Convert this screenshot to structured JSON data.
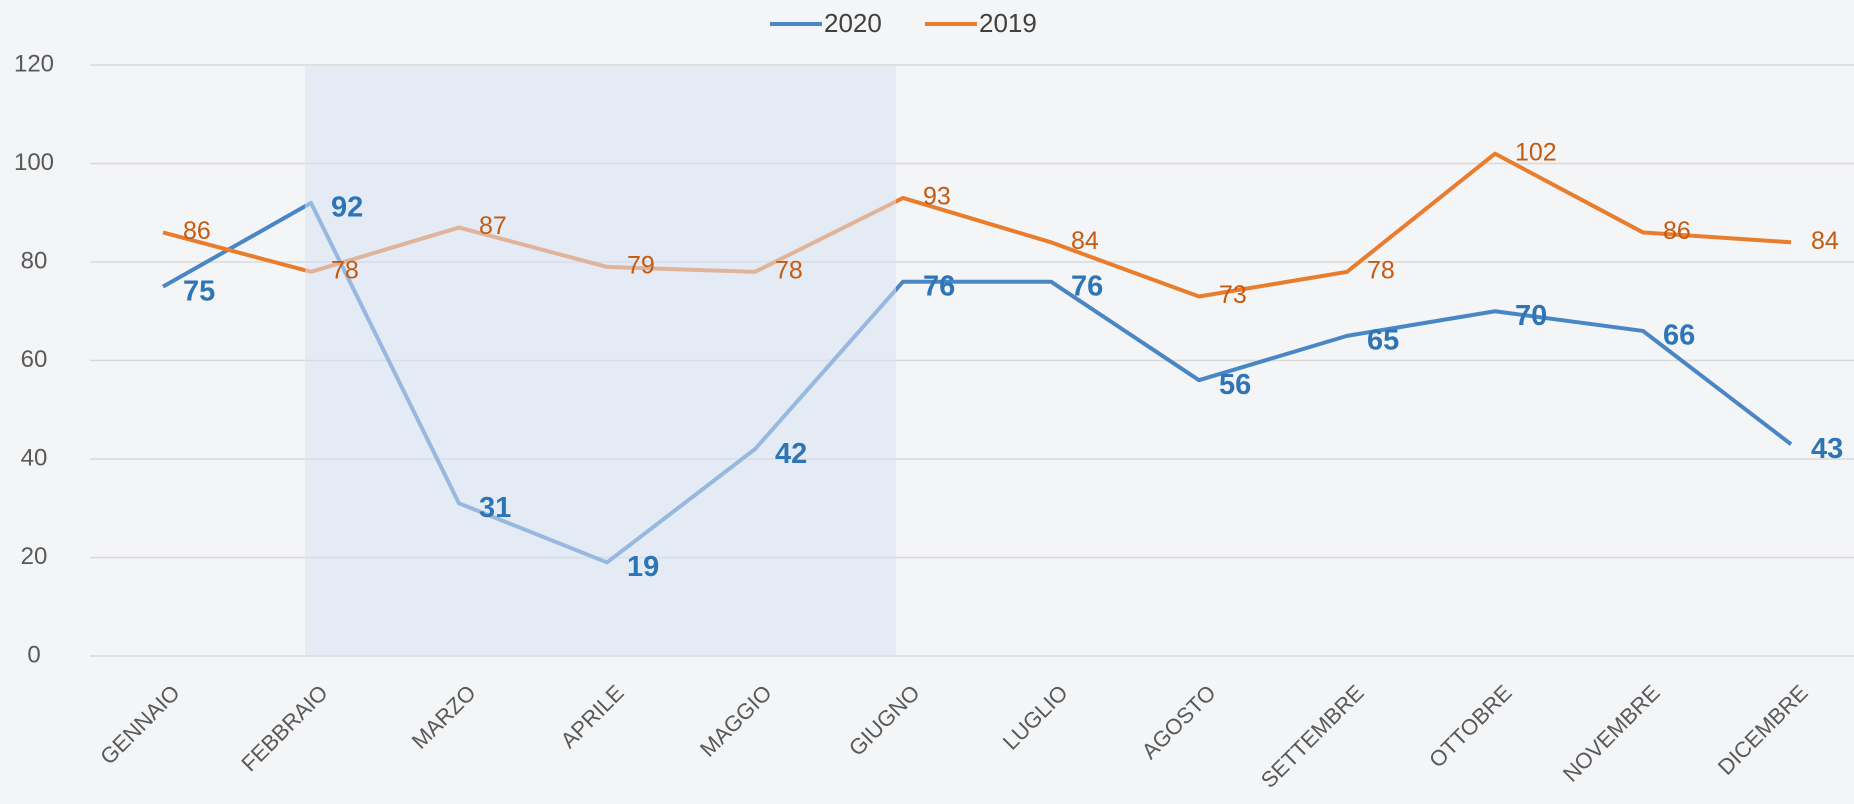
{
  "chart_data": {
    "type": "line",
    "categories": [
      "GENNAIO",
      "FEBBRAIO",
      "MARZO",
      "APRILE",
      "MAGGIO",
      "GIUGNO",
      "LUGLIO",
      "AGOSTO",
      "SETTEMBRE",
      "OTTOBRE",
      "NOVEMBRE",
      "DICEMBRE"
    ],
    "series": [
      {
        "name": "2020",
        "color": "#4a86c5",
        "values": [
          75,
          92,
          31,
          19,
          42,
          76,
          76,
          56,
          65,
          70,
          66,
          43
        ]
      },
      {
        "name": "2019",
        "color": "#e87d2e",
        "values": [
          86,
          78,
          87,
          79,
          78,
          93,
          84,
          73,
          78,
          102,
          86,
          84
        ]
      }
    ],
    "ylim": [
      0,
      120
    ],
    "yticks": [
      0,
      20,
      40,
      60,
      80,
      100,
      120
    ],
    "grid": true,
    "legend": "top"
  }
}
